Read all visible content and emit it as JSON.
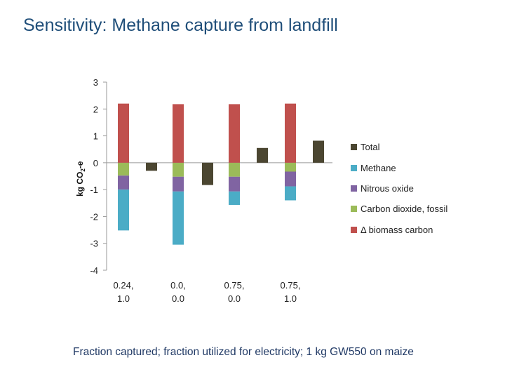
{
  "slide": {
    "title": "Sensitivity: Methane capture from landfill",
    "caption": "Fraction captured; fraction utilized for electricity; 1 kg GW550 on maize"
  },
  "chart_data": {
    "type": "bar",
    "stacked": true,
    "ylabel_main": "kg CO",
    "ylabel_sub": "2",
    "ylabel_tail": "-e",
    "ylim": [
      -4,
      3
    ],
    "yticks": [
      3,
      2,
      1,
      0,
      -1,
      -2,
      -3,
      -4
    ],
    "grid": false,
    "legend_position": "right",
    "groups": [
      {
        "label_line1": "0.24,",
        "label_line2": "1.0"
      },
      {
        "label_line1": "0.0,",
        "label_line2": "0.0"
      },
      {
        "label_line1": "0.75,",
        "label_line2": "0.0"
      },
      {
        "label_line1": "0.75,",
        "label_line2": "1.0"
      }
    ],
    "series": [
      {
        "name": "Total",
        "color": "#4b4631",
        "values": [
          -0.3,
          -0.83,
          0.55,
          0.82
        ]
      },
      {
        "name": "Methane",
        "color": "#4bacc6",
        "values": [
          -1.52,
          -1.98,
          -0.5,
          -0.52
        ]
      },
      {
        "name": "Nitrous oxide",
        "color": "#8064a2",
        "values": [
          -0.52,
          -0.55,
          -0.55,
          -0.55
        ]
      },
      {
        "name": "Carbon dioxide, fossil",
        "color": "#9bbb59",
        "values": [
          -0.48,
          -0.52,
          -0.52,
          -0.33
        ]
      },
      {
        "name": "Δ biomass carbon",
        "color": "#c0504d",
        "values": [
          2.2,
          2.18,
          2.18,
          2.2
        ]
      }
    ]
  }
}
